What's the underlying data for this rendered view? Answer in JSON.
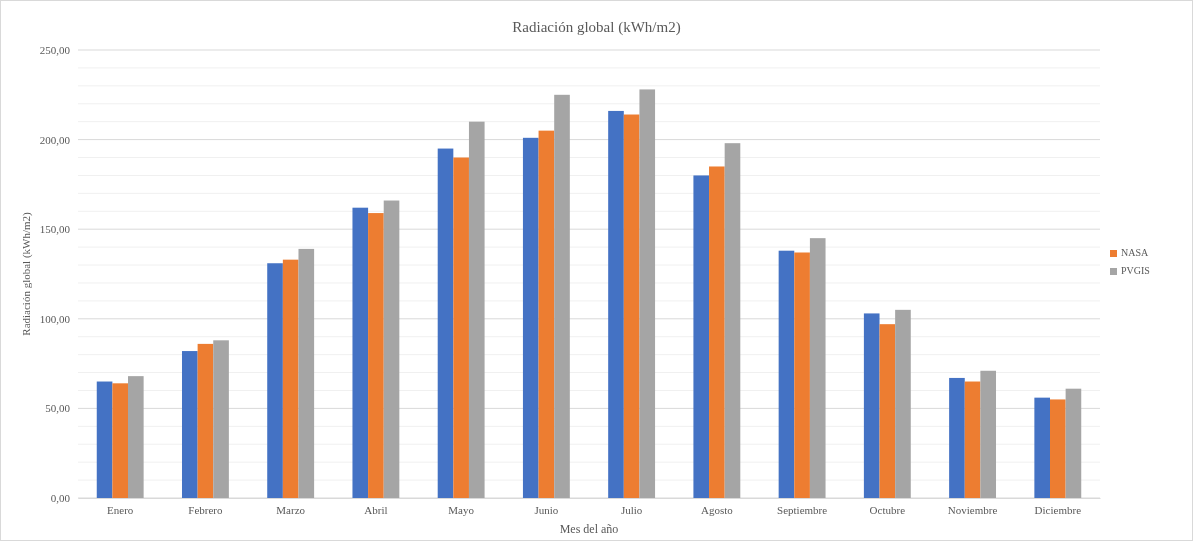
{
  "chart_data": {
    "type": "bar",
    "title": "Radiación global (kWh/m2)",
    "xlabel": "Mes del año",
    "ylabel": "Radiación global (kWh/m2)",
    "categories": [
      "Enero",
      "Febrero",
      "Marzo",
      "Abril",
      "Mayo",
      "Junio",
      "Julio",
      "Agosto",
      "Septiembre",
      "Octubre",
      "Noviembre",
      "Diciembre"
    ],
    "series": [
      {
        "color": "#4472c4",
        "values": [
          65,
          82,
          131,
          162,
          195,
          201,
          216,
          180,
          138,
          103,
          67,
          56
        ]
      },
      {
        "name": "NASA",
        "color": "#ed7d31",
        "values": [
          64,
          86,
          133,
          159,
          190,
          205,
          214,
          185,
          137,
          97,
          65,
          55
        ]
      },
      {
        "name": "PVGIS",
        "color": "#a5a5a5",
        "values": [
          68,
          88,
          139,
          166,
          210,
          225,
          228,
          198,
          145,
          105,
          71,
          61
        ]
      }
    ],
    "ylim": [
      0,
      250
    ],
    "yticks": [
      {
        "value": 0,
        "label": "0,00"
      },
      {
        "value": 10,
        "label": null
      },
      {
        "value": 20,
        "label": null
      },
      {
        "value": 30,
        "label": null
      },
      {
        "value": 40,
        "label": null
      },
      {
        "value": 50,
        "label": "50,00"
      },
      {
        "value": 60,
        "label": null
      },
      {
        "value": 70,
        "label": null
      },
      {
        "value": 80,
        "label": null
      },
      {
        "value": 90,
        "label": null
      },
      {
        "value": 100,
        "label": "100,00"
      },
      {
        "value": 110,
        "label": null
      },
      {
        "value": 120,
        "label": null
      },
      {
        "value": 130,
        "label": null
      },
      {
        "value": 140,
        "label": null
      },
      {
        "value": 150,
        "label": "150,00"
      },
      {
        "value": 160,
        "label": null
      },
      {
        "value": 170,
        "label": null
      },
      {
        "value": 180,
        "label": null
      },
      {
        "value": 190,
        "label": null
      },
      {
        "value": 200,
        "label": "200,00"
      },
      {
        "value": 210,
        "label": null
      },
      {
        "value": 220,
        "label": null
      },
      {
        "value": 230,
        "label": null
      },
      {
        "value": 240,
        "label": null
      },
      {
        "value": 250,
        "label": "250,00"
      }
    ],
    "grid": true,
    "legend": "right"
  }
}
